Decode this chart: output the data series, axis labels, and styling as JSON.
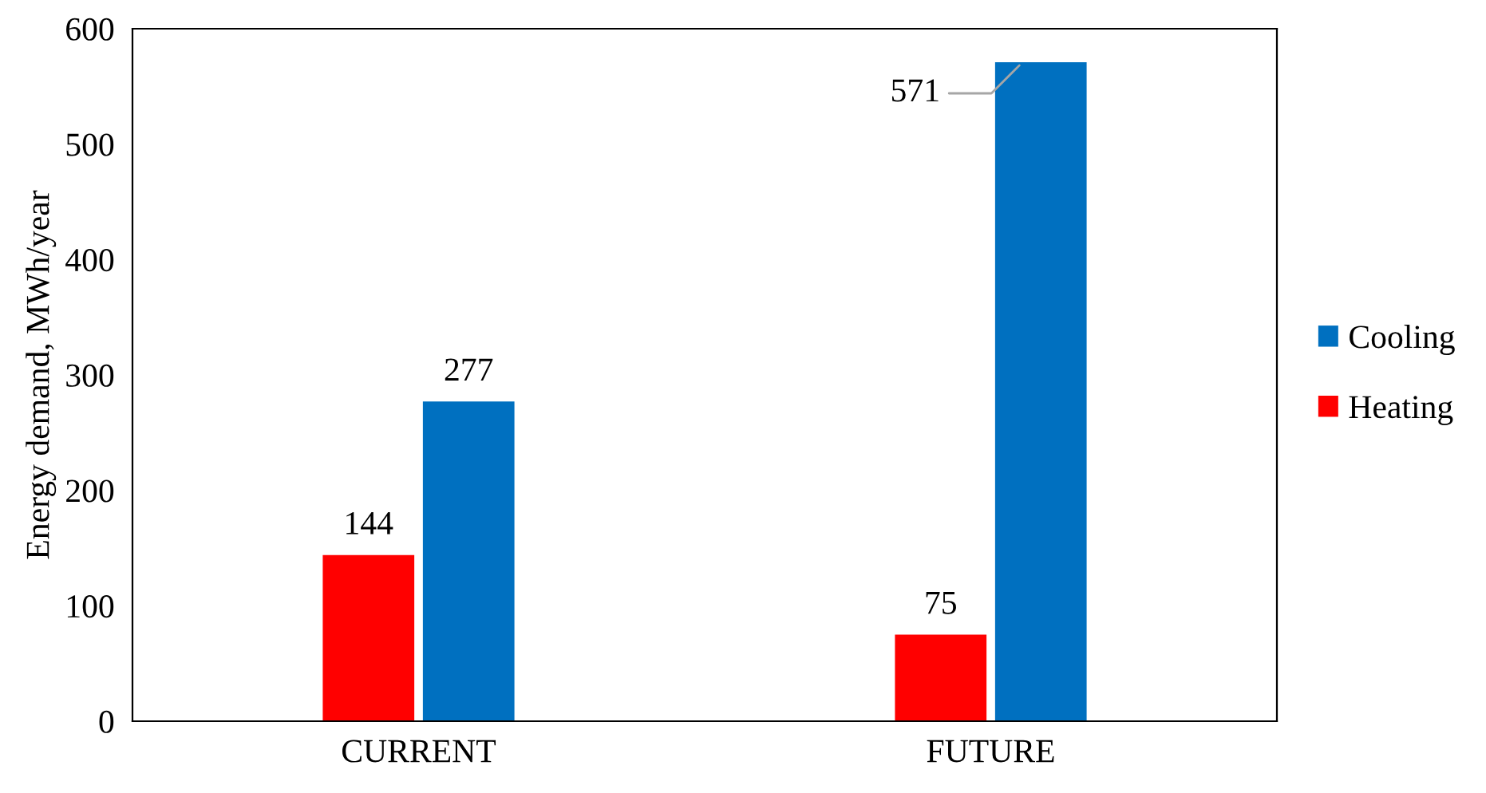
{
  "chart_data": {
    "type": "bar",
    "ylabel": "Energy demand, MWh/year",
    "categories": [
      "CURRENT",
      "FUTURE"
    ],
    "series": [
      {
        "name": "Heating",
        "color": "#ff0000",
        "values": [
          144,
          75
        ]
      },
      {
        "name": "Cooling",
        "color": "#0070c0",
        "values": [
          277,
          571
        ]
      }
    ],
    "ylim": [
      0,
      600
    ],
    "yticks": [
      0,
      100,
      200,
      300,
      400,
      500,
      600
    ],
    "grid": false,
    "legend": "right",
    "data_labels": true
  }
}
